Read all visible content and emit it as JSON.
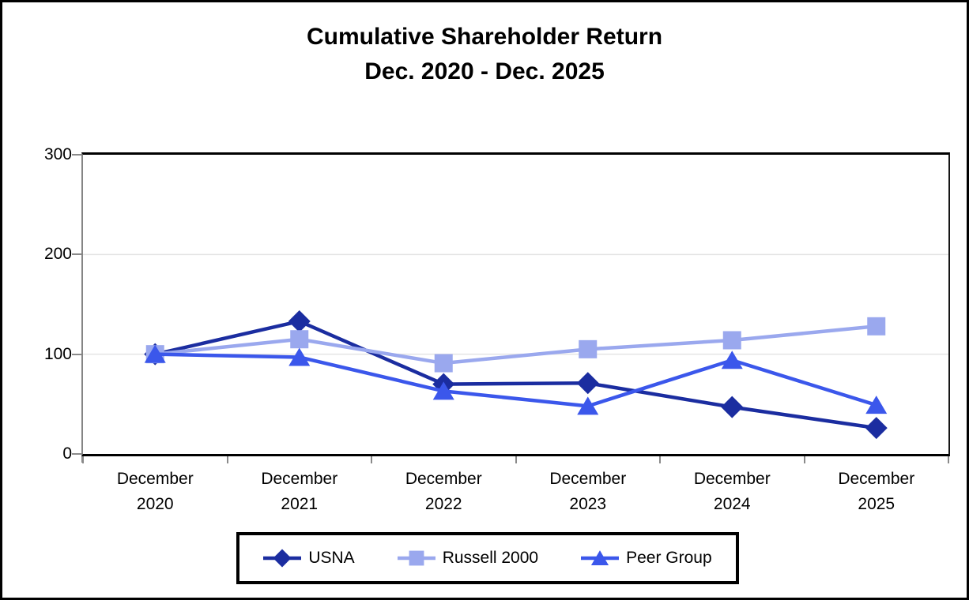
{
  "window": {
    "background": "#FFFFFF",
    "frame_border_color": "#000000"
  },
  "chart_data": {
    "type": "line",
    "title": "Cumulative Shareholder Return",
    "subtitle": "Dec. 2020 - Dec. 2025",
    "categories": [
      "December 2020",
      "December 2021",
      "December 2022",
      "December 2023",
      "December 2024",
      "December 2025"
    ],
    "series": [
      {
        "name": "USNA",
        "marker": "diamond",
        "color": "#1B2DA0",
        "values": [
          100,
          133,
          70,
          71,
          47,
          26
        ]
      },
      {
        "name": "Russell 2000",
        "marker": "square",
        "color": "#9AA8EE",
        "values": [
          100,
          115,
          91,
          105,
          114,
          128
        ]
      },
      {
        "name": "Peer Group",
        "marker": "triangle",
        "color": "#3B57EB",
        "values": [
          100,
          97,
          63,
          48,
          94,
          49
        ]
      }
    ],
    "ylim": [
      0,
      300
    ],
    "yticks": [
      300,
      200,
      100,
      0
    ],
    "grid": "horizontal",
    "gridline_color": "#E4E4E4",
    "axis_color": "#8A8A8A",
    "plot_border_color": "#000000",
    "legend_position": "bottom"
  }
}
